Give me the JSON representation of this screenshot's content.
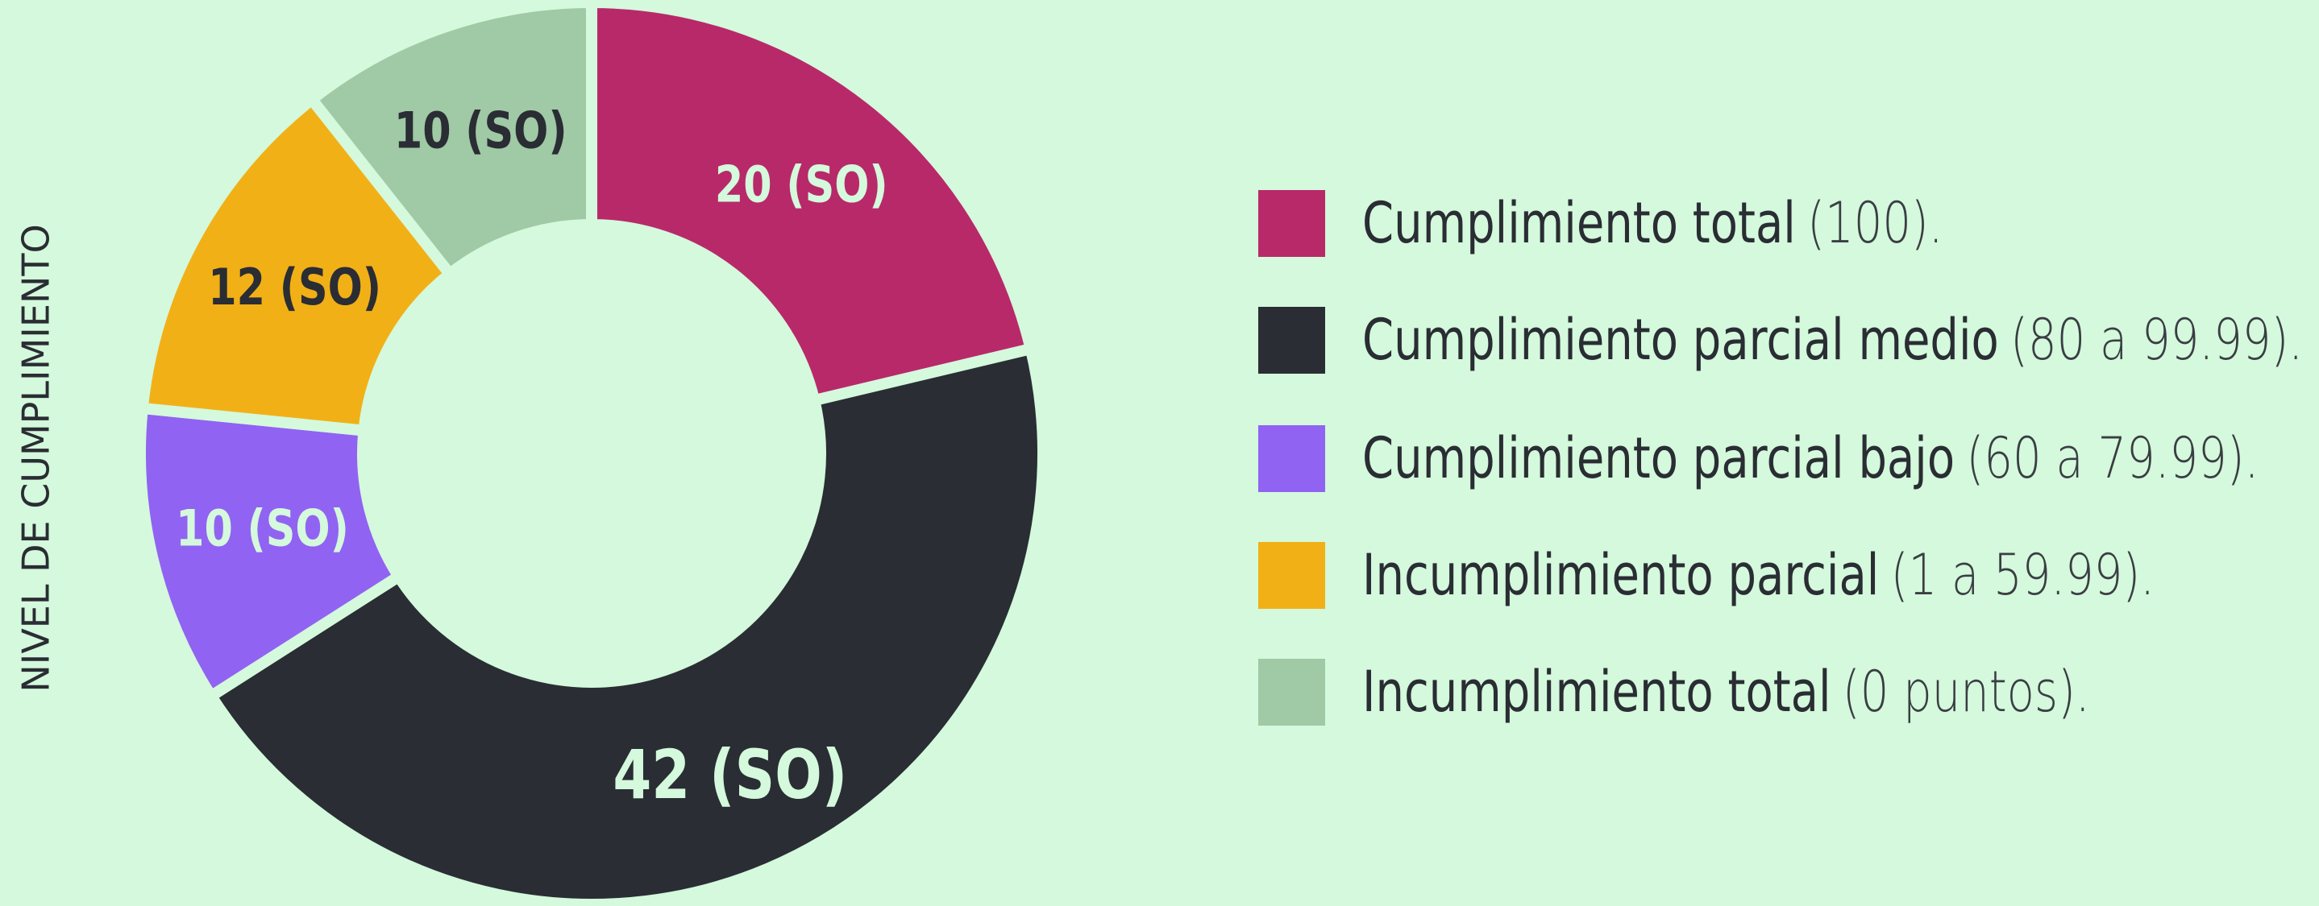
{
  "chart_data": {
    "type": "donut",
    "y_label": "NIVEL DE CUMPLIMIENTO",
    "categories": [
      "Cumplimiento total",
      "Cumplimiento parcial medio",
      "Cumplimiento parcial bajo",
      "Incumplimiento parcial",
      "Incumplimiento total"
    ],
    "legend_notes": [
      "(100).",
      "(80 a 99.99).",
      "(60 a 79.99).",
      "(1 a 59.99).",
      "(0 puntos)."
    ],
    "values": [
      20,
      42,
      10,
      12,
      10
    ],
    "value_labels": [
      "20 (SO)",
      "42 (SO)",
      "10 (SO)",
      "12 (SO)",
      "10 (SO)"
    ],
    "colors": [
      "#b8296a",
      "#2a2d33",
      "#9163f2",
      "#f2b017",
      "#a0c9a6"
    ],
    "background": "#d4f9dc"
  }
}
